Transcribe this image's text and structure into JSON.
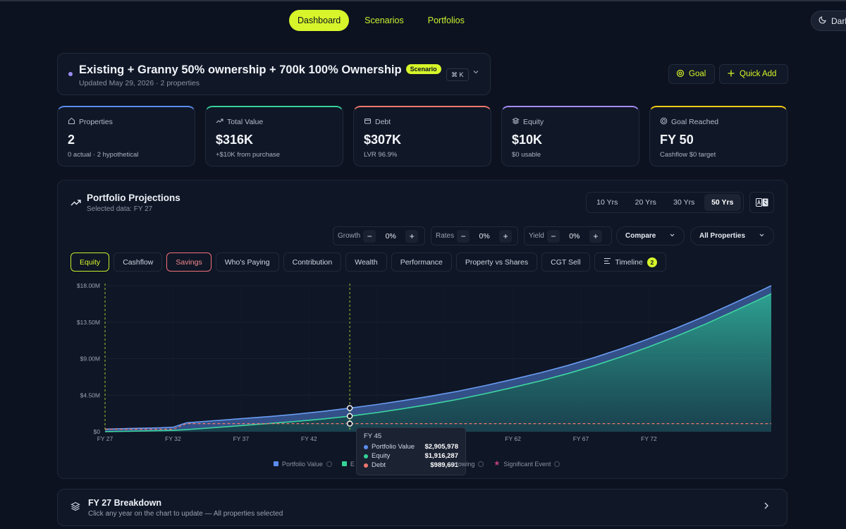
{
  "nav": {
    "tabs": [
      "Dashboard",
      "Scenarios",
      "Portfolios"
    ],
    "active": "Dashboard",
    "theme_label": "Dark"
  },
  "scenario": {
    "title": "Existing + Granny 50% ownership + 700k 100% Ownership",
    "badge": "Scenario",
    "subtitle": "Updated May 29, 2026 · 2 properties",
    "shortcut": "⌘ K"
  },
  "actions": {
    "goal": "Goal",
    "quick_add": "Quick Add"
  },
  "stats": [
    {
      "label": "Properties",
      "value": "2",
      "note": "0 actual · 2 hypothetical",
      "color": "#5b8def",
      "icon": "home-icon"
    },
    {
      "label": "Total Value",
      "value": "$316K",
      "note": "+$10K from purchase",
      "color": "#34d399",
      "icon": "trend-up-icon"
    },
    {
      "label": "Debt",
      "value": "$307K",
      "note": "LVR 96.9%",
      "color": "#f0776e",
      "icon": "wallet-icon"
    },
    {
      "label": "Equity",
      "value": "$10K",
      "note": "$0 usable",
      "color": "#a78bfa",
      "icon": "layers-icon"
    },
    {
      "label": "Goal Reached",
      "value": "FY 50",
      "note": "Cashflow $0 target",
      "color": "#facc15",
      "icon": "target-icon"
    }
  ],
  "projections": {
    "title": "Portfolio Projections",
    "subtitle": "Selected data: FY 27",
    "year_ranges": [
      "10 Yrs",
      "20 Yrs",
      "30 Yrs",
      "50 Yrs"
    ],
    "active_range": "50 Yrs",
    "controls": {
      "growth": {
        "label": "Growth",
        "value": "0%"
      },
      "rates": {
        "label": "Rates",
        "value": "0%"
      },
      "yield": {
        "label": "Yield",
        "value": "0%"
      },
      "compare": "Compare",
      "properties": "All Properties"
    },
    "tabs": [
      "Equity",
      "Cashflow",
      "Savings",
      "Who's Paying",
      "Contribution",
      "Wealth",
      "Performance",
      "Property vs Shares",
      "CGT Sell",
      "Timeline"
    ],
    "timeline_count": "2"
  },
  "chart_data": {
    "type": "area",
    "x_ticks": [
      "FY 27",
      "FY 32",
      "FY 37",
      "FY 42",
      "FY 4",
      "FY 57",
      "FY 62",
      "FY 67",
      "FY 72"
    ],
    "y_ticks": [
      "$18.00M",
      "$13.50M",
      "$9.00M",
      "$4.50M",
      "$0"
    ],
    "ylim": [
      0,
      18000000
    ],
    "xlim": [
      27,
      76
    ],
    "x": [
      27,
      29,
      31,
      32,
      33,
      35,
      37,
      39,
      41,
      43,
      45,
      47,
      49,
      51,
      53,
      55,
      57,
      59,
      61,
      63,
      65,
      67,
      69,
      71,
      73,
      75,
      76
    ],
    "series": [
      {
        "name": "Portfolio Value",
        "color": "#5b8def",
        "values": [
          316000,
          400000,
          480000,
          550000,
          1100000,
          1350000,
          1600000,
          1850000,
          2150000,
          2500000,
          2905978,
          3350000,
          3850000,
          4400000,
          5000000,
          5700000,
          6450000,
          7250000,
          8150000,
          9150000,
          10250000,
          11450000,
          12750000,
          14150000,
          15650000,
          17200000,
          18000000
        ]
      },
      {
        "name": "Equity",
        "color": "#34d399",
        "values": [
          10000,
          60000,
          120000,
          160000,
          250000,
          500000,
          750000,
          1000000,
          1260000,
          1560000,
          1916287,
          2350000,
          2850000,
          3400000,
          4000000,
          4700000,
          5450000,
          6250000,
          7150000,
          8150000,
          9250000,
          10450000,
          11750000,
          13150000,
          14650000,
          16200000,
          17000000
        ]
      },
      {
        "name": "Debt",
        "color": "#f0776e",
        "values": [
          307000,
          307000,
          307000,
          307000,
          989691,
          989691,
          989691,
          989691,
          989691,
          989691,
          989691,
          989691,
          989691,
          989691,
          989691,
          989691,
          989691,
          989691,
          989691,
          989691,
          989691,
          989691,
          989691,
          989691,
          989691,
          989691,
          989691
        ]
      }
    ],
    "markers": [
      27,
      45
    ],
    "tooltip": {
      "title": "FY 45",
      "rows": [
        {
          "label": "Portfolio Value",
          "value": "$2,905,978",
          "color": "#5b8def"
        },
        {
          "label": "Equity",
          "value": "$1,916,287",
          "color": "#34d399"
        },
        {
          "label": "Debt",
          "value": "$989,691",
          "color": "#f0776e"
        }
      ]
    },
    "legend": [
      "Portfolio Value",
      "E",
      "orrowing",
      "Significant Event"
    ]
  },
  "breakdown": {
    "title": "FY 27 Breakdown",
    "subtitle": "Click any year on the chart to update — All properties selected"
  }
}
